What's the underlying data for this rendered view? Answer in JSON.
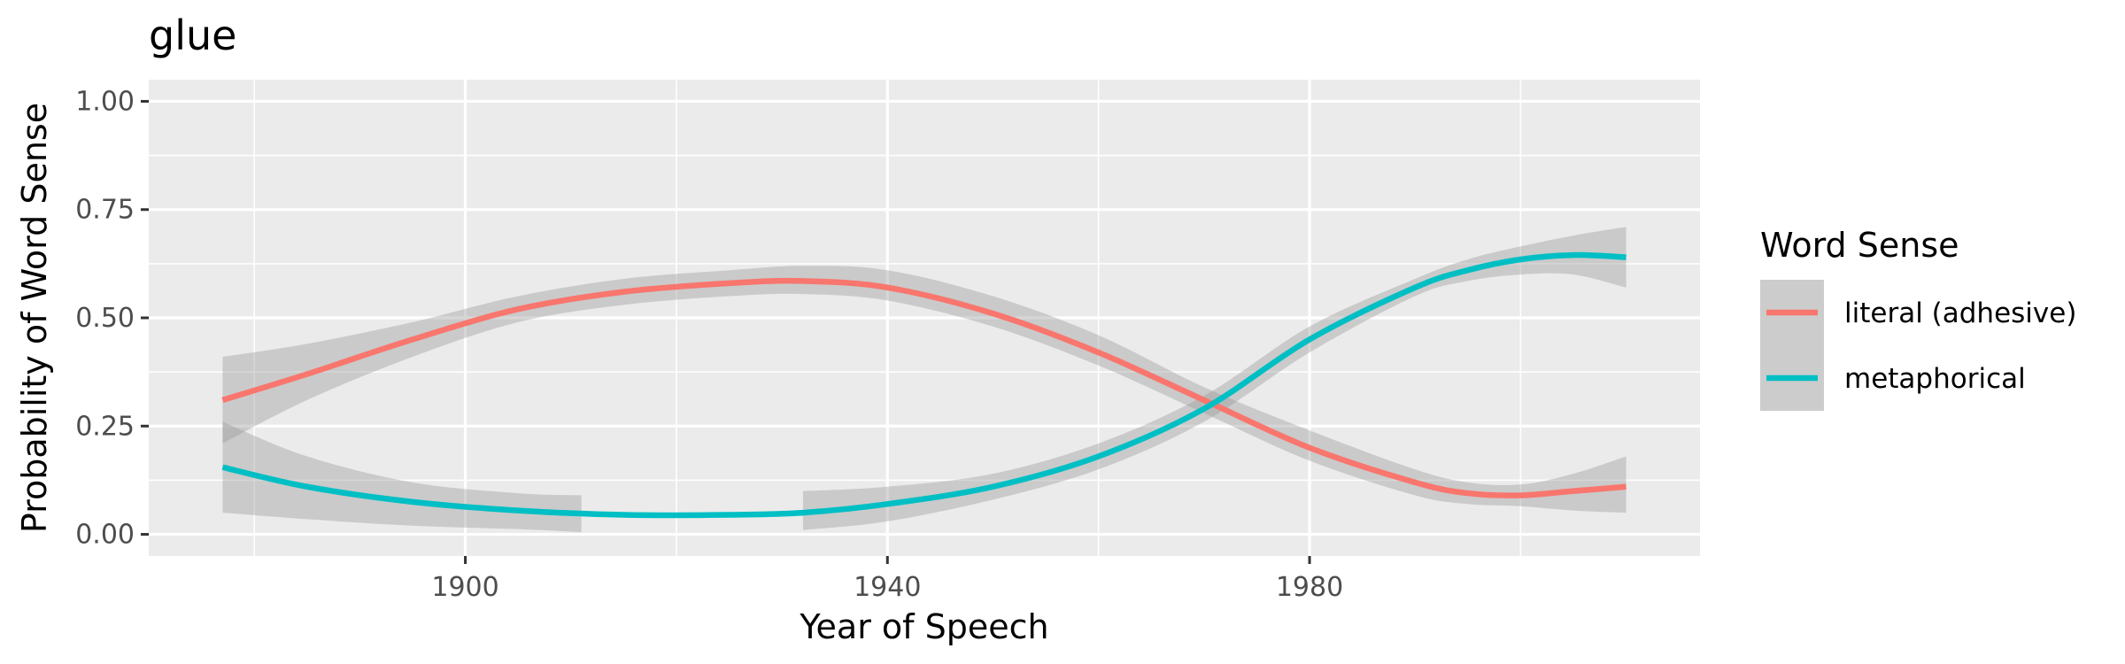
{
  "chart_data": {
    "type": "line",
    "title": "glue",
    "xlabel": "Year of Speech",
    "ylabel": "Probability of Word Sense",
    "xlim": [
      1870,
      2017
    ],
    "ylim": [
      -0.05,
      1.05
    ],
    "x_ticks": [
      1900,
      1940,
      1980
    ],
    "y_ticks": [
      0.0,
      0.25,
      0.5,
      0.75,
      1.0
    ],
    "y_tick_labels": [
      "0.00",
      "0.25",
      "0.50",
      "0.75",
      "1.00"
    ],
    "grid": true,
    "legend": {
      "title": "Word Sense",
      "position": "right"
    },
    "series": [
      {
        "name": "literal (adhesive)",
        "color": "#F8766D",
        "x": [
          1877,
          1885,
          1895,
          1905,
          1915,
          1925,
          1932,
          1940,
          1950,
          1960,
          1970,
          1980,
          1990,
          1995,
          2000,
          2005,
          2010
        ],
        "y": [
          0.31,
          0.37,
          0.45,
          0.52,
          0.56,
          0.58,
          0.585,
          0.57,
          0.51,
          0.42,
          0.31,
          0.2,
          0.12,
          0.095,
          0.09,
          0.1,
          0.11
        ],
        "band_x": [
          1877,
          1885,
          1895,
          1905,
          1915,
          1925,
          1932,
          1940,
          1950,
          1960,
          1970,
          1980,
          1990,
          1995,
          2000,
          2005,
          2010
        ],
        "lower": [
          0.21,
          0.31,
          0.41,
          0.49,
          0.53,
          0.55,
          0.555,
          0.54,
          0.48,
          0.39,
          0.28,
          0.17,
          0.09,
          0.07,
          0.065,
          0.055,
          0.05
        ],
        "upper": [
          0.41,
          0.44,
          0.49,
          0.55,
          0.59,
          0.61,
          0.62,
          0.61,
          0.55,
          0.46,
          0.34,
          0.24,
          0.15,
          0.12,
          0.115,
          0.14,
          0.18
        ]
      },
      {
        "name": "metaphorical",
        "color": "#00BFC4",
        "x": [
          1877,
          1885,
          1895,
          1905,
          1915,
          1925,
          1932,
          1940,
          1950,
          1960,
          1970,
          1980,
          1990,
          1995,
          2000,
          2005,
          2010
        ],
        "y": [
          0.155,
          0.11,
          0.075,
          0.055,
          0.045,
          0.045,
          0.05,
          0.07,
          0.11,
          0.18,
          0.29,
          0.45,
          0.57,
          0.61,
          0.635,
          0.645,
          0.64
        ],
        "bands": [
          {
            "x": [
              1877,
              1885,
              1895,
              1905,
              1911
            ],
            "lower": [
              0.05,
              0.035,
              0.02,
              0.012,
              0.005
            ],
            "upper": [
              0.26,
              0.18,
              0.12,
              0.095,
              0.09
            ]
          },
          {
            "x": [
              1932,
              1940,
              1950,
              1960,
              1970,
              1980,
              1990,
              1995,
              2000,
              2005,
              2010
            ],
            "lower": [
              0.01,
              0.03,
              0.08,
              0.15,
              0.26,
              0.42,
              0.55,
              0.585,
              0.6,
              0.6,
              0.57
            ],
            "upper": [
              0.1,
              0.11,
              0.14,
              0.21,
              0.32,
              0.48,
              0.59,
              0.635,
              0.665,
              0.69,
              0.71
            ]
          }
        ]
      }
    ]
  }
}
